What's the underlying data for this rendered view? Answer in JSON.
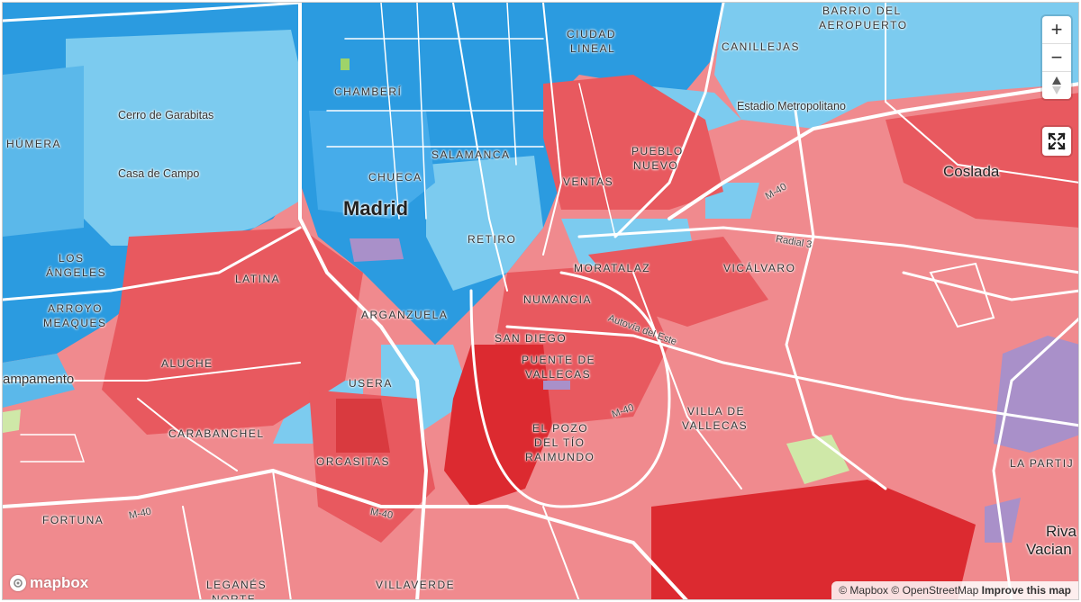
{
  "map": {
    "labels": {
      "city": "Madrid",
      "coslada": "Coslada",
      "riva": "Riva",
      "vacian": "Vacian",
      "cerro": "Cerro de Garabitas",
      "casa_campo": "Casa de Campo",
      "estadio": "Estadio Metropolitano",
      "ampamento": "ampamento",
      "humera": "HÚMERA",
      "los_angeles_1": "LOS",
      "los_angeles_2": "ÁNGELES",
      "arroyo_1": "ARROYO",
      "arroyo_2": "MEAQUES",
      "chamberi": "CHAMBERÍ",
      "ciudad_lineal_1": "CIUDAD",
      "ciudad_lineal_2": "LINEAL",
      "canillejas": "CANILLEJAS",
      "barrio_1": "BARRIO DEL",
      "barrio_2": "AEROPUERTO",
      "salamanca": "SALAMANCA",
      "chueca": "CHUECA",
      "pueblo_1": "PUEBLO",
      "pueblo_2": "NUEVO",
      "ventas": "VENTAS",
      "retiro": "RETIRO",
      "latina": "LATINA",
      "moratalaz": "MORATALAZ",
      "vicalvaro": "VICÁLVARO",
      "numancia": "NUMANCIA",
      "arganzuela": "ARGANZUELA",
      "san_diego": "SAN DIEGO",
      "puente_1": "PUENTE DE",
      "puente_2": "VALLECAS",
      "aluche": "ALUCHE",
      "usera": "USERA",
      "villa_1": "VILLA DE",
      "villa_2": "VALLECAS",
      "carabanchel": "CARABANCHEL",
      "pozo_1": "EL POZO",
      "pozo_2": "DEL TÍO",
      "pozo_3": "RAIMUNDO",
      "orcasitas": "ORCASITAS",
      "la_partij": "LA PARTIJ",
      "fortuna": "FORTUNA",
      "leganes_1": "LEGANÉS",
      "leganes_2": "NORTE",
      "villaverde": "VILLAVERDE",
      "m40_a": "M-40",
      "m40_b": "M-40",
      "m40_c": "M-40",
      "m40_d": "M-40",
      "radial3": "Radial 3",
      "autovia": "Autovía del Este"
    },
    "colors": {
      "blue_dark": "#2b9be0",
      "blue_light": "#7ccbef",
      "red_light": "#f08a8e",
      "red_mid": "#e8595f",
      "red_dark": "#dc2a30",
      "purple": "#a990c9",
      "green": "#cfe8a8",
      "road": "#ffffff"
    }
  },
  "controls": {
    "zoom_in": "+",
    "zoom_out": "−",
    "compass": "compass-icon",
    "fullscreen": "fullscreen-icon"
  },
  "logo": {
    "text": "mapbox"
  },
  "attribution": {
    "mapbox": "© Mapbox",
    "osm": "© OpenStreetMap",
    "improve": "Improve this map"
  }
}
